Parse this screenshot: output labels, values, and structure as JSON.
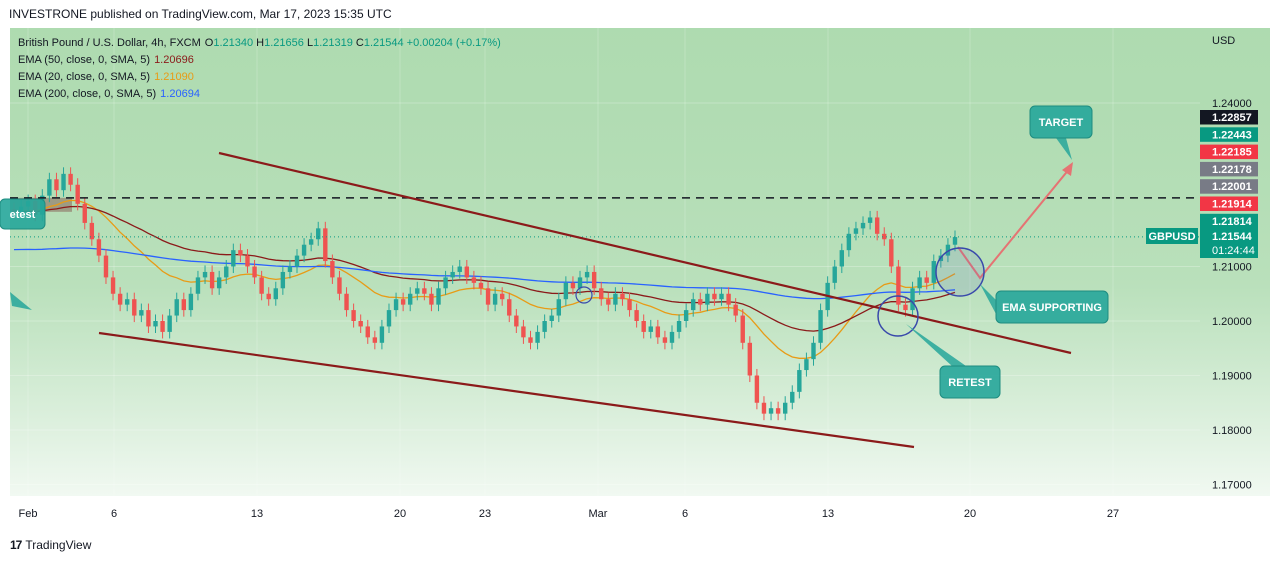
{
  "header": {
    "publish_line": "INVESTRONE published on TradingView.com, Mar 17, 2023 15:35 UTC"
  },
  "footer": {
    "brand": "TradingView",
    "logo": "tradingview-logo"
  },
  "legend": {
    "symbol": "British Pound / U.S. Dollar, 4h, FXCM",
    "ohlc": [
      {
        "k": "O",
        "v": "1.21340"
      },
      {
        "k": "H",
        "v": "1.21656"
      },
      {
        "k": "L",
        "v": "1.21319"
      },
      {
        "k": "C",
        "v": "1.21544"
      },
      {
        "k": "",
        "v": "+0.00204 (+0.17%)"
      }
    ],
    "indicators": [
      {
        "label": "EMA (50, close, 0, SMA, 5)",
        "value": "1.20696",
        "color": "#8B1A1A"
      },
      {
        "label": "EMA (20, close, 0, SMA, 5)",
        "value": "1.21090",
        "color": "#E89B16"
      },
      {
        "label": "EMA (200, close, 0, SMA, 5)",
        "value": "1.20694",
        "color": "#2962FF"
      }
    ]
  },
  "chart_data": {
    "type": "candlestick",
    "symbol": "GBPUSD",
    "currency": "USD",
    "timeframe": "4h",
    "x_ticks": [
      "Feb",
      "6",
      "13",
      "20",
      "23",
      "Mar",
      "6",
      "13",
      "20",
      "27"
    ],
    "y_ticks": [
      "1.24000",
      "1.21000",
      "1.20000",
      "1.19000",
      "1.18000",
      "1.17000"
    ],
    "ylim": [
      1.1665,
      1.2485
    ],
    "last_price": {
      "label": "GBPUSD",
      "value": "1.21544",
      "countdown": "01:24:44",
      "color": "#089981"
    },
    "price_tags": [
      {
        "value": "1.22857",
        "color": "#131722"
      },
      {
        "value": "1.22443",
        "color": "#089981"
      },
      {
        "value": "1.22185",
        "color": "#F23645"
      },
      {
        "value": "1.22178",
        "color": "#787B86"
      },
      {
        "value": "1.22001",
        "color": "#787B86"
      },
      {
        "value": "1.21914",
        "color": "#F23645"
      },
      {
        "value": "1.21814",
        "color": "#089981"
      }
    ],
    "resistance_level": 1.2226,
    "annotations": [
      {
        "text": "TARGET"
      },
      {
        "text": "EMA SUPPORTING"
      },
      {
        "text": "RETEST"
      },
      {
        "text": "etest"
      }
    ],
    "channel": {
      "upper": [
        [
          "Feb 10",
          1.2228
        ],
        [
          "Mar 20",
          1.1993
        ]
      ],
      "lower": [
        [
          "Feb 6",
          1.1966
        ],
        [
          "Mar 16",
          1.1769
        ]
      ]
    },
    "closes": [
      1.22,
      1.221,
      1.222,
      1.2195,
      1.223,
      1.226,
      1.224,
      1.227,
      1.225,
      1.2215,
      1.218,
      1.215,
      1.212,
      1.208,
      1.205,
      1.203,
      1.204,
      1.201,
      1.202,
      1.199,
      1.2,
      1.198,
      1.201,
      1.204,
      1.202,
      1.205,
      1.208,
      1.209,
      1.206,
      1.208,
      1.21,
      1.213,
      1.212,
      1.21,
      1.208,
      1.205,
      1.204,
      1.206,
      1.209,
      1.21,
      1.212,
      1.214,
      1.215,
      1.217,
      1.211,
      1.208,
      1.205,
      1.202,
      1.2,
      1.199,
      1.197,
      1.196,
      1.199,
      1.202,
      1.204,
      1.203,
      1.205,
      1.206,
      1.205,
      1.203,
      1.206,
      1.208,
      1.209,
      1.21,
      1.208,
      1.207,
      1.206,
      1.203,
      1.205,
      1.204,
      1.201,
      1.199,
      1.197,
      1.196,
      1.198,
      1.2,
      1.201,
      1.204,
      1.207,
      1.206,
      1.208,
      1.209,
      1.206,
      1.204,
      1.203,
      1.205,
      1.204,
      1.202,
      1.2,
      1.198,
      1.199,
      1.197,
      1.196,
      1.198,
      1.2,
      1.202,
      1.204,
      1.203,
      1.205,
      1.204,
      1.205,
      1.203,
      1.201,
      1.196,
      1.19,
      1.185,
      1.183,
      1.184,
      1.183,
      1.185,
      1.187,
      1.191,
      1.193,
      1.196,
      1.202,
      1.207,
      1.21,
      1.213,
      1.216,
      1.217,
      1.218,
      1.219,
      1.216,
      1.215,
      1.21,
      1.203,
      1.202,
      1.206,
      1.208,
      1.207,
      1.211,
      1.212,
      1.214,
      1.2154
    ]
  }
}
